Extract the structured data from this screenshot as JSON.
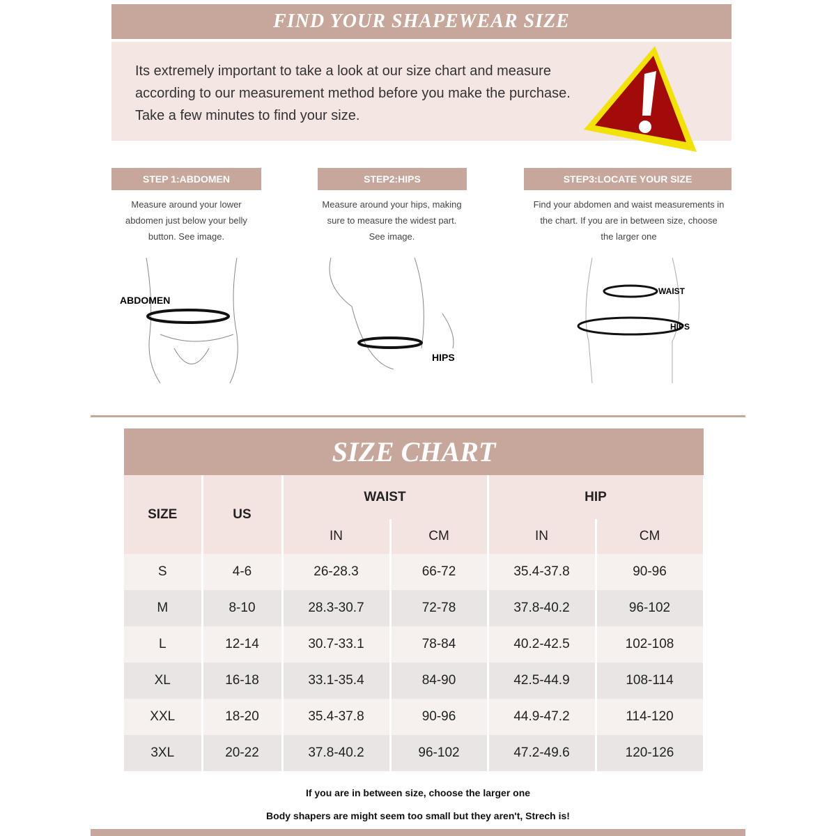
{
  "title": "FIND YOUR SHAPEWEAR SIZE",
  "intro": "Its extremely important to take a look at our size chart and measure according to our measurement method before you make the purchase. Take a few minutes to find your size.",
  "steps": [
    {
      "label": "STEP 1:ABDOMEN",
      "text": "Measure around your lower abdomen just below your belly button. See image.",
      "tag": "ABDOMEN"
    },
    {
      "label": "STEP2:HIPS",
      "text": "Measure around your hips, making sure to measure the widest part. See image.",
      "tag": "HIPS"
    },
    {
      "label": "STEP3:LOCATE YOUR SIZE",
      "text": "Find your abdomen and waist measurements in the chart. If you are in between size, choose the larger one",
      "tag1": "WAIST",
      "tag2": "HIPS"
    }
  ],
  "chart": {
    "title": "SIZE CHART",
    "headers": {
      "size": "SIZE",
      "us": "US",
      "waist": "WAIST",
      "hip": "HIP",
      "in": "IN",
      "cm": "CM"
    },
    "rows": [
      [
        "S",
        "4-6",
        "26-28.3",
        "66-72",
        "35.4-37.8",
        "90-96"
      ],
      [
        "M",
        "8-10",
        "28.3-30.7",
        "72-78",
        "37.8-40.2",
        "96-102"
      ],
      [
        "L",
        "12-14",
        "30.7-33.1",
        "78-84",
        "40.2-42.5",
        "102-108"
      ],
      [
        "XL",
        "16-18",
        "33.1-35.4",
        "84-90",
        "42.5-44.9",
        "108-114"
      ],
      [
        "XXL",
        "18-20",
        "35.4-37.8",
        "90-96",
        "44.9-47.2",
        "114-120"
      ],
      [
        "3XL",
        "20-22",
        "37.8-40.2",
        "96-102",
        "47.2-49.6",
        "120-126"
      ]
    ]
  },
  "notes": [
    "If you are in between size, choose the larger one",
    "Body shapers are might seem too small but they aren't, Strech is!"
  ],
  "colors": {
    "accent": "#c7a79b",
    "warning_fill": "#a30b0b",
    "warning_border": "#f2e20a"
  }
}
